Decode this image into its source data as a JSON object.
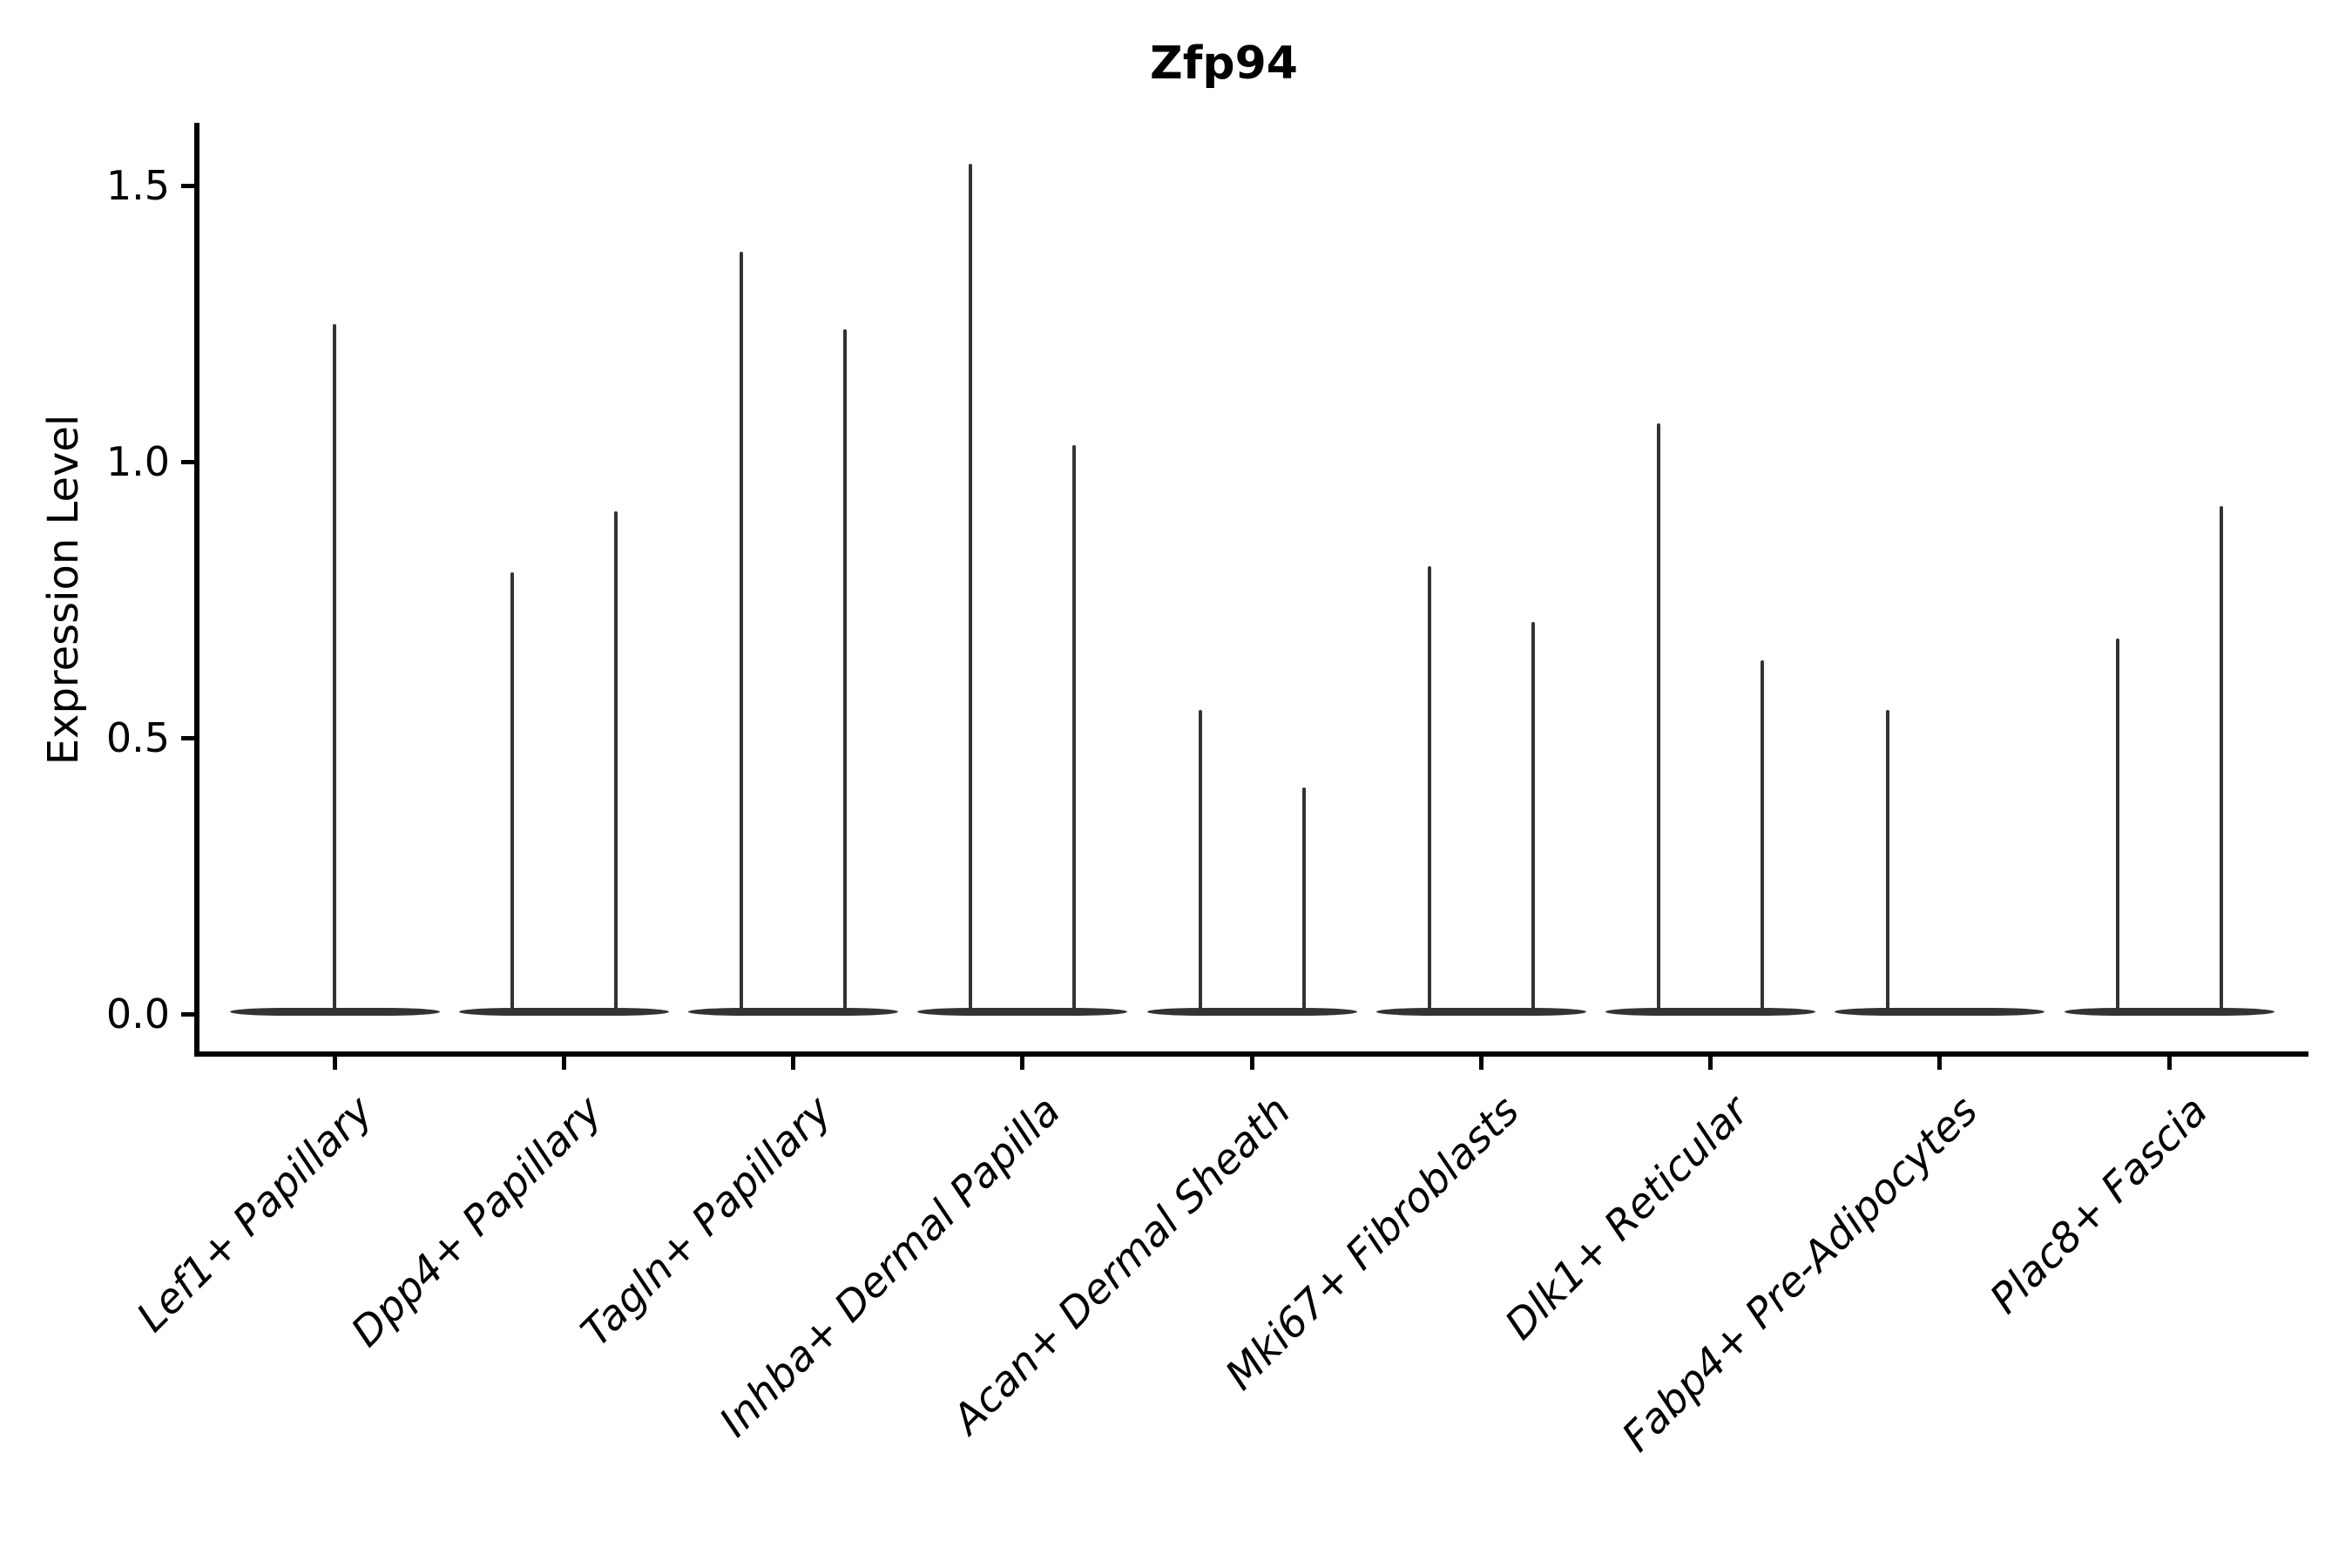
{
  "figure": {
    "title": "Zfp94",
    "background_color": "#ffffff",
    "axis_color": "#000000",
    "violin_color": "#333333"
  },
  "chart_data": {
    "type": "violin",
    "title": "Zfp94",
    "xlabel": "",
    "ylabel": "Expression Level",
    "yticks": [
      "0.0",
      "0.5",
      "1.0",
      "1.5"
    ],
    "ylim": [
      -0.08,
      1.61
    ],
    "grid": false,
    "legend": false,
    "categories": [
      "Lef1+ Papillary",
      "Dpp4+ Papillary",
      "Tagln+ Papillary",
      "Inhba+ Dermal Papilla",
      "Acan+ Dermal Sheath",
      "Mki67+ Fibroblasts",
      "Dlk1+ Reticular",
      "Fabp4+ Pre-Adipocytes",
      "Plac8+ Fascia"
    ],
    "description": "Each category shows violin(s) of Zfp94 expression: a flat density body at 0 with a thin vertical range line rising to the maximum expression value.",
    "groups": [
      {
        "category": "Lef1+ Papillary",
        "spikes": [
          {
            "side": "center",
            "max": 1.25
          }
        ]
      },
      {
        "category": "Dpp4+ Papillary",
        "spikes": [
          {
            "side": "left",
            "max": 0.8
          },
          {
            "side": "right",
            "max": 0.91
          }
        ]
      },
      {
        "category": "Tagln+ Papillary",
        "spikes": [
          {
            "side": "left",
            "max": 1.38
          },
          {
            "side": "right",
            "max": 1.24
          }
        ]
      },
      {
        "category": "Inhba+ Dermal Papilla",
        "spikes": [
          {
            "side": "left",
            "max": 1.54
          },
          {
            "side": "right",
            "max": 1.03
          }
        ]
      },
      {
        "category": "Acan+ Dermal Sheath",
        "spikes": [
          {
            "side": "left",
            "max": 0.55
          },
          {
            "side": "right",
            "max": 0.41
          }
        ]
      },
      {
        "category": "Mki67+ Fibroblasts",
        "spikes": [
          {
            "side": "left",
            "max": 0.81
          },
          {
            "side": "right",
            "max": 0.71
          }
        ]
      },
      {
        "category": "Dlk1+ Reticular",
        "spikes": [
          {
            "side": "left",
            "max": 1.07
          },
          {
            "side": "right",
            "max": 0.64
          }
        ]
      },
      {
        "category": "Fabp4+ Pre-Adipocytes",
        "spikes": [
          {
            "side": "left",
            "max": 0.55
          }
        ]
      },
      {
        "category": "Plac8+ Fascia",
        "spikes": [
          {
            "side": "left",
            "max": 0.68
          },
          {
            "side": "right",
            "max": 0.92
          }
        ]
      }
    ]
  }
}
